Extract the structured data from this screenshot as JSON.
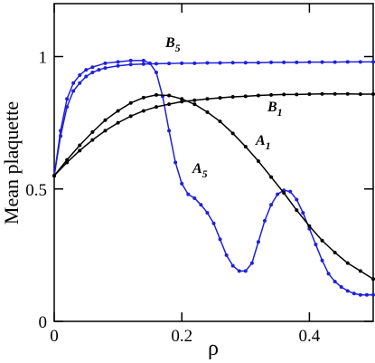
{
  "chart_data": {
    "type": "line",
    "xlabel": "ρ",
    "ylabel": "Mean plaquette",
    "xlim": [
      0,
      0.5
    ],
    "ylim": [
      0,
      1.2
    ],
    "xticks": [
      0,
      0.2,
      0.4
    ],
    "yticks": [
      0,
      0.5,
      1
    ],
    "series": [
      {
        "name": "B5",
        "color": "#1f1fdd",
        "x": [
          0,
          0.01,
          0.02,
          0.03,
          0.04,
          0.05,
          0.06,
          0.07,
          0.08,
          0.1,
          0.12,
          0.14,
          0.16,
          0.18,
          0.2,
          0.22,
          0.24,
          0.26,
          0.28,
          0.3,
          0.32,
          0.34,
          0.36,
          0.38,
          0.4,
          0.42,
          0.44,
          0.46,
          0.48,
          0.5
        ],
        "values": [
          0.55,
          0.7,
          0.81,
          0.87,
          0.9,
          0.925,
          0.94,
          0.95,
          0.957,
          0.965,
          0.97,
          0.972,
          0.973,
          0.974,
          0.975,
          0.975,
          0.976,
          0.976,
          0.977,
          0.977,
          0.977,
          0.978,
          0.978,
          0.978,
          0.979,
          0.979,
          0.979,
          0.98,
          0.98,
          0.98
        ]
      },
      {
        "name": "A5",
        "color": "#1f1fdd",
        "x": [
          0,
          0.01,
          0.02,
          0.03,
          0.04,
          0.05,
          0.06,
          0.08,
          0.1,
          0.12,
          0.14,
          0.15,
          0.16,
          0.17,
          0.18,
          0.19,
          0.2,
          0.21,
          0.22,
          0.23,
          0.24,
          0.25,
          0.26,
          0.27,
          0.28,
          0.29,
          0.3,
          0.31,
          0.32,
          0.33,
          0.34,
          0.35,
          0.36,
          0.37,
          0.38,
          0.39,
          0.4,
          0.41,
          0.42,
          0.43,
          0.44,
          0.45,
          0.46,
          0.47,
          0.48,
          0.49,
          0.5
        ],
        "values": [
          0.55,
          0.72,
          0.84,
          0.9,
          0.93,
          0.95,
          0.96,
          0.975,
          0.98,
          0.985,
          0.985,
          0.975,
          0.94,
          0.85,
          0.72,
          0.6,
          0.52,
          0.48,
          0.465,
          0.44,
          0.41,
          0.37,
          0.31,
          0.25,
          0.21,
          0.19,
          0.19,
          0.22,
          0.3,
          0.38,
          0.44,
          0.48,
          0.495,
          0.49,
          0.46,
          0.41,
          0.35,
          0.29,
          0.23,
          0.18,
          0.15,
          0.13,
          0.115,
          0.105,
          0.1,
          0.1,
          0.1
        ]
      },
      {
        "name": "A1",
        "color": "#000000",
        "x": [
          0,
          0.02,
          0.04,
          0.06,
          0.08,
          0.1,
          0.12,
          0.14,
          0.16,
          0.18,
          0.2,
          0.22,
          0.24,
          0.26,
          0.28,
          0.3,
          0.32,
          0.34,
          0.36,
          0.38,
          0.4,
          0.42,
          0.44,
          0.46,
          0.48,
          0.5
        ],
        "values": [
          0.55,
          0.61,
          0.665,
          0.715,
          0.76,
          0.795,
          0.825,
          0.845,
          0.855,
          0.853,
          0.84,
          0.82,
          0.79,
          0.755,
          0.71,
          0.66,
          0.605,
          0.545,
          0.485,
          0.42,
          0.36,
          0.305,
          0.26,
          0.22,
          0.19,
          0.16
        ]
      },
      {
        "name": "B1",
        "color": "#000000",
        "x": [
          0,
          0.02,
          0.04,
          0.06,
          0.08,
          0.1,
          0.12,
          0.14,
          0.16,
          0.18,
          0.2,
          0.22,
          0.24,
          0.26,
          0.28,
          0.3,
          0.32,
          0.34,
          0.36,
          0.38,
          0.4,
          0.42,
          0.44,
          0.46,
          0.48,
          0.5
        ],
        "values": [
          0.55,
          0.6,
          0.645,
          0.685,
          0.72,
          0.75,
          0.775,
          0.795,
          0.81,
          0.82,
          0.83,
          0.835,
          0.84,
          0.844,
          0.848,
          0.85,
          0.853,
          0.855,
          0.857,
          0.857,
          0.858,
          0.859,
          0.859,
          0.859,
          0.858,
          0.858
        ]
      }
    ],
    "annotations": [
      {
        "text": "B",
        "sub": "5"
      },
      {
        "text": "B",
        "sub": "1"
      },
      {
        "text": "A",
        "sub": "1"
      },
      {
        "text": "A",
        "sub": "5"
      }
    ]
  }
}
